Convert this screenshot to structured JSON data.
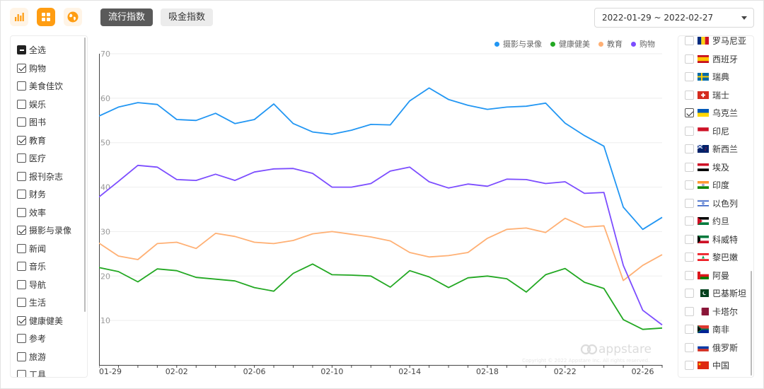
{
  "toolbar": {
    "icons": [
      "bar-chart-icon",
      "grid-icon",
      "globe-icon"
    ],
    "tabs": [
      "流行指数",
      "吸金指数"
    ],
    "active_tab": "流行指数",
    "date_range": "2022-01-29 ~ 2022-02-27"
  },
  "categories": [
    {
      "label": "全选",
      "state": "indeterminate"
    },
    {
      "label": "购物",
      "state": "checked"
    },
    {
      "label": "美食佳饮",
      "state": "unchecked"
    },
    {
      "label": "娱乐",
      "state": "unchecked"
    },
    {
      "label": "图书",
      "state": "unchecked"
    },
    {
      "label": "教育",
      "state": "checked"
    },
    {
      "label": "医疗",
      "state": "unchecked"
    },
    {
      "label": "报刊杂志",
      "state": "unchecked"
    },
    {
      "label": "财务",
      "state": "unchecked"
    },
    {
      "label": "效率",
      "state": "unchecked"
    },
    {
      "label": "摄影与录像",
      "state": "checked"
    },
    {
      "label": "新闻",
      "state": "unchecked"
    },
    {
      "label": "音乐",
      "state": "unchecked"
    },
    {
      "label": "导航",
      "state": "unchecked"
    },
    {
      "label": "生活",
      "state": "unchecked"
    },
    {
      "label": "健康健美",
      "state": "checked"
    },
    {
      "label": "参考",
      "state": "unchecked"
    },
    {
      "label": "旅游",
      "state": "unchecked"
    },
    {
      "label": "工具",
      "state": "unchecked"
    }
  ],
  "countries": [
    {
      "label": "罗马尼亚",
      "flag": "romania-flag-icon",
      "state": "unchecked"
    },
    {
      "label": "西班牙",
      "flag": "spain-flag-icon",
      "state": "unchecked"
    },
    {
      "label": "瑞典",
      "flag": "sweden-flag-icon",
      "state": "unchecked"
    },
    {
      "label": "瑞士",
      "flag": "switzerland-flag-icon",
      "state": "unchecked"
    },
    {
      "label": "乌克兰",
      "flag": "ukraine-flag-icon",
      "state": "checked"
    },
    {
      "label": "印尼",
      "flag": "indonesia-flag-icon",
      "state": "unchecked"
    },
    {
      "label": "新西兰",
      "flag": "new-zealand-flag-icon",
      "state": "unchecked"
    },
    {
      "label": "埃及",
      "flag": "egypt-flag-icon",
      "state": "unchecked"
    },
    {
      "label": "印度",
      "flag": "india-flag-icon",
      "state": "unchecked"
    },
    {
      "label": "以色列",
      "flag": "israel-flag-icon",
      "state": "unchecked"
    },
    {
      "label": "约旦",
      "flag": "jordan-flag-icon",
      "state": "unchecked"
    },
    {
      "label": "科威特",
      "flag": "kuwait-flag-icon",
      "state": "unchecked"
    },
    {
      "label": "黎巴嫩",
      "flag": "lebanon-flag-icon",
      "state": "unchecked"
    },
    {
      "label": "阿曼",
      "flag": "oman-flag-icon",
      "state": "unchecked"
    },
    {
      "label": "巴基斯坦",
      "flag": "pakistan-flag-icon",
      "state": "unchecked"
    },
    {
      "label": "卡塔尔",
      "flag": "qatar-flag-icon",
      "state": "unchecked"
    },
    {
      "label": "南非",
      "flag": "south-africa-flag-icon",
      "state": "unchecked"
    },
    {
      "label": "俄罗斯",
      "flag": "russia-flag-icon",
      "state": "unchecked"
    },
    {
      "label": "中国",
      "flag": "china-flag-icon",
      "state": "unchecked"
    }
  ],
  "watermark": {
    "brand": "appstare",
    "text": "Copyright © 2022 Appstare Inc. All rights reserved."
  },
  "colors": {
    "accent": "#ff9d12",
    "active_tab": "#5a5a5a"
  },
  "chart_data": {
    "type": "line",
    "x": [
      "01-29",
      "01-30",
      "01-31",
      "02-01",
      "02-02",
      "02-03",
      "02-04",
      "02-05",
      "02-06",
      "02-07",
      "02-08",
      "02-09",
      "02-10",
      "02-11",
      "02-12",
      "02-13",
      "02-14",
      "02-15",
      "02-16",
      "02-17",
      "02-18",
      "02-19",
      "02-20",
      "02-21",
      "02-22",
      "02-23",
      "02-24",
      "02-25",
      "02-26",
      "02-27"
    ],
    "xticks": [
      "01-29",
      "02-02",
      "02-06",
      "02-10",
      "02-14",
      "02-18",
      "02-22",
      "02-26"
    ],
    "yticks": [
      10,
      20,
      30,
      40,
      50,
      60,
      70
    ],
    "ylim": [
      0,
      70
    ],
    "grid": true,
    "legend_position": "top-right",
    "series": [
      {
        "name": "摄影与录像",
        "color": "#2196f3",
        "values": [
          56,
          58,
          59,
          58.6,
          55.2,
          55,
          56.6,
          54.3,
          55.2,
          58.7,
          54.3,
          52.4,
          51.9,
          52.8,
          54.1,
          54,
          59.4,
          62.3,
          59.7,
          58.4,
          57.5,
          58,
          58.2,
          58.9,
          54.4,
          51.6,
          49.2,
          35.5,
          30.5,
          33.2
        ]
      },
      {
        "name": "健康健美",
        "color": "#22a822",
        "values": [
          21.9,
          21,
          18.7,
          21.6,
          21.2,
          19.7,
          19.3,
          18.9,
          17.4,
          16.6,
          20.6,
          22.7,
          20.3,
          20.2,
          20.0,
          17.5,
          21.2,
          19.8,
          17.4,
          19.6,
          20.0,
          19.4,
          16.4,
          20.3,
          21.7,
          18.6,
          17.2,
          10.2,
          8,
          8.3
        ]
      },
      {
        "name": "教育",
        "color": "#ffb074",
        "values": [
          27.4,
          24.5,
          23.7,
          27.3,
          27.6,
          26.2,
          29.6,
          28.9,
          27.6,
          27.3,
          28.0,
          29.5,
          30.0,
          29.4,
          28.8,
          27.9,
          25.3,
          24.3,
          24.6,
          25.3,
          28.5,
          30.5,
          30.8,
          29.8,
          33.0,
          31.0,
          31.3,
          19.0,
          22.4,
          24.8
        ]
      },
      {
        "name": "购物",
        "color": "#7c4dff",
        "values": [
          37.8,
          41.3,
          44.9,
          44.5,
          41.7,
          41.5,
          42.9,
          41.5,
          43.4,
          44.1,
          44.2,
          43.1,
          40.0,
          40.0,
          40.8,
          43.6,
          44.5,
          41.2,
          39.8,
          40.7,
          40.2,
          41.8,
          41.7,
          40.8,
          41.2,
          38.6,
          38.8,
          22.4,
          12.3,
          9.0
        ]
      }
    ]
  }
}
